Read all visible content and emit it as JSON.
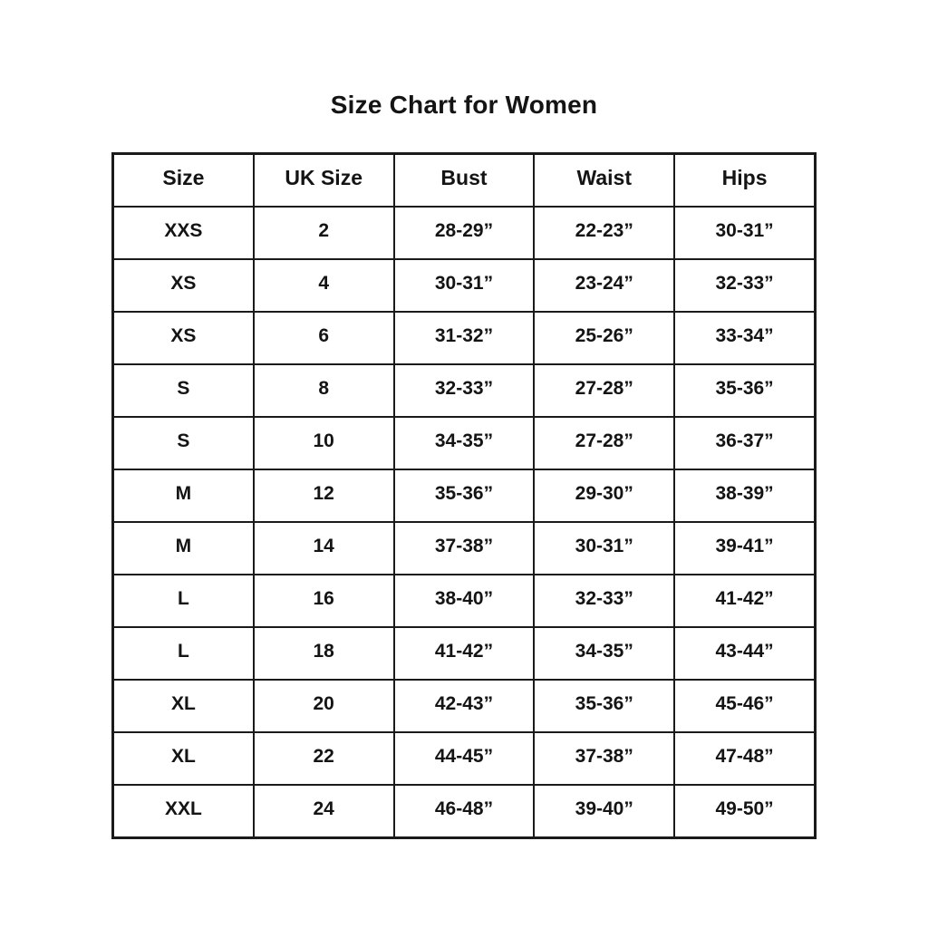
{
  "title": "Size Chart for Women",
  "colors": {
    "background": "#ffffff",
    "text": "#141414",
    "border": "#1a1a1a"
  },
  "chart_data": {
    "type": "table",
    "title": "Size Chart for Women",
    "columns": [
      "Size",
      "UK Size",
      "Bust",
      "Waist",
      "Hips"
    ],
    "rows": [
      [
        "XXS",
        "2",
        "28-29”",
        "22-23”",
        "30-31”"
      ],
      [
        "XS",
        "4",
        "30-31”",
        "23-24”",
        "32-33”"
      ],
      [
        "XS",
        "6",
        "31-32”",
        "25-26”",
        "33-34”"
      ],
      [
        "S",
        "8",
        "32-33”",
        "27-28”",
        "35-36”"
      ],
      [
        "S",
        "10",
        "34-35”",
        "27-28”",
        "36-37”"
      ],
      [
        "M",
        "12",
        "35-36”",
        "29-30”",
        "38-39”"
      ],
      [
        "M",
        "14",
        "37-38”",
        "30-31”",
        "39-41”"
      ],
      [
        "L",
        "16",
        "38-40”",
        "32-33”",
        "41-42”"
      ],
      [
        "L",
        "18",
        "41-42”",
        "34-35”",
        "43-44”"
      ],
      [
        "XL",
        "20",
        "42-43”",
        "35-36”",
        "45-46”"
      ],
      [
        "XL",
        "22",
        "44-45”",
        "37-38”",
        "47-48”"
      ],
      [
        "XXL",
        "24",
        "46-48”",
        "39-40”",
        "49-50”"
      ]
    ],
    "layout": {
      "grid": "full-borders",
      "header_position": "top-row",
      "alignment": "center"
    }
  }
}
